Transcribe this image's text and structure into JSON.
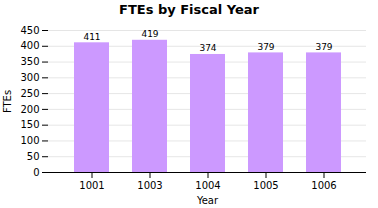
{
  "chart_data": {
    "type": "bar",
    "title": "FTEs by Fiscal Year",
    "xlabel": "Year",
    "ylabel": "FTEs",
    "categories": [
      "1001",
      "1003",
      "1004",
      "1005",
      "1006"
    ],
    "values": [
      411,
      419,
      374,
      379,
      379
    ],
    "color": "#cc99ff",
    "ylim": [
      0,
      450
    ],
    "yticks": [
      0,
      50,
      100,
      150,
      200,
      250,
      300,
      350,
      400,
      450
    ],
    "grid": true,
    "data_labels": true
  }
}
